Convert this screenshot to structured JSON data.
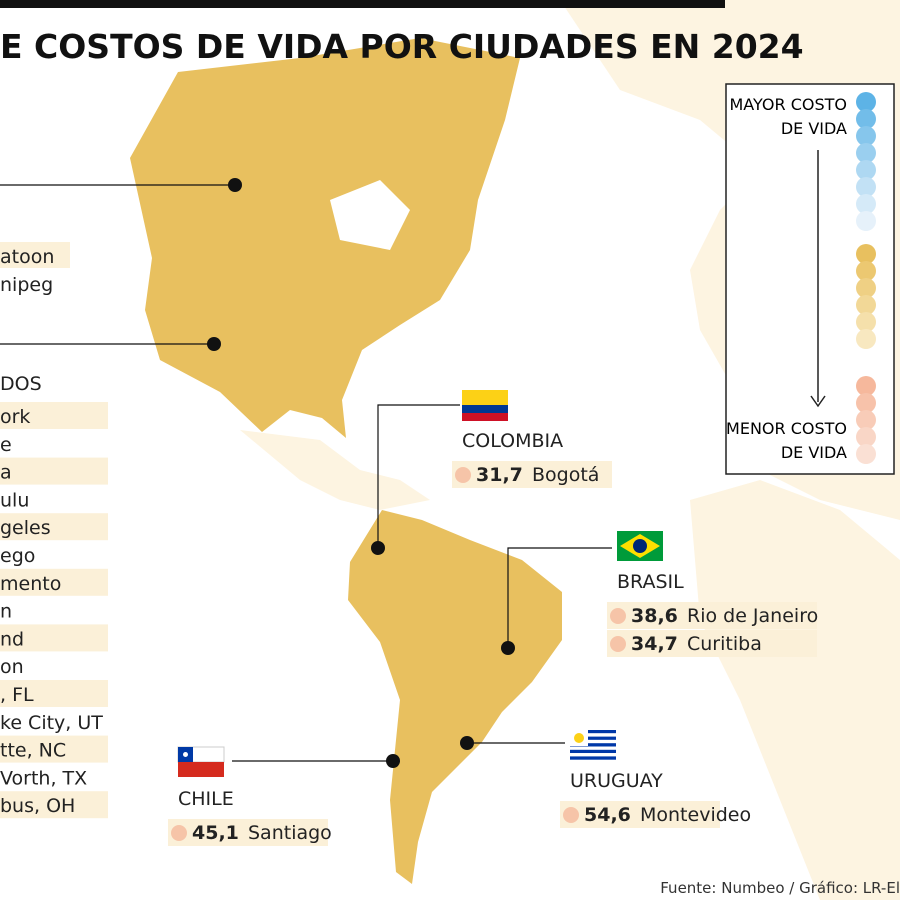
{
  "header": {
    "title": "E COSTOS DE VIDA POR CIUDADES EN 2024"
  },
  "legend": {
    "top": [
      "MAYOR COSTO",
      "DE VIDA"
    ],
    "bottom": [
      "MENOR COSTO",
      "DE VIDA"
    ]
  },
  "canada": {
    "cities": [
      "atoon",
      "nipeg"
    ]
  },
  "usa": {
    "country": "DOS",
    "cities": [
      "ork",
      "e",
      "a",
      "ulu",
      "geles",
      "ego",
      "mento",
      "n",
      "nd",
      "on",
      ", FL",
      "ke City, UT",
      "tte, NC",
      "Vorth, TX",
      "bus, OH"
    ]
  },
  "countries": [
    {
      "name": "COLOMBIA",
      "cities": [
        {
          "value": "31,7",
          "city": "Bogotá"
        }
      ]
    },
    {
      "name": "BRASIL",
      "cities": [
        {
          "value": "38,6",
          "city": "Rio de Janeiro"
        },
        {
          "value": "34,7",
          "city": "Curitiba"
        }
      ]
    },
    {
      "name": "CHILE",
      "cities": [
        {
          "value": "45,1",
          "city": "Santiago"
        }
      ]
    },
    {
      "name": "URUGUAY",
      "cities": [
        {
          "value": "54,6",
          "city": "Montevideo"
        }
      ]
    }
  ],
  "footer": {
    "source": "Fuente: Numbeo / Gráfico: LR-El"
  }
}
